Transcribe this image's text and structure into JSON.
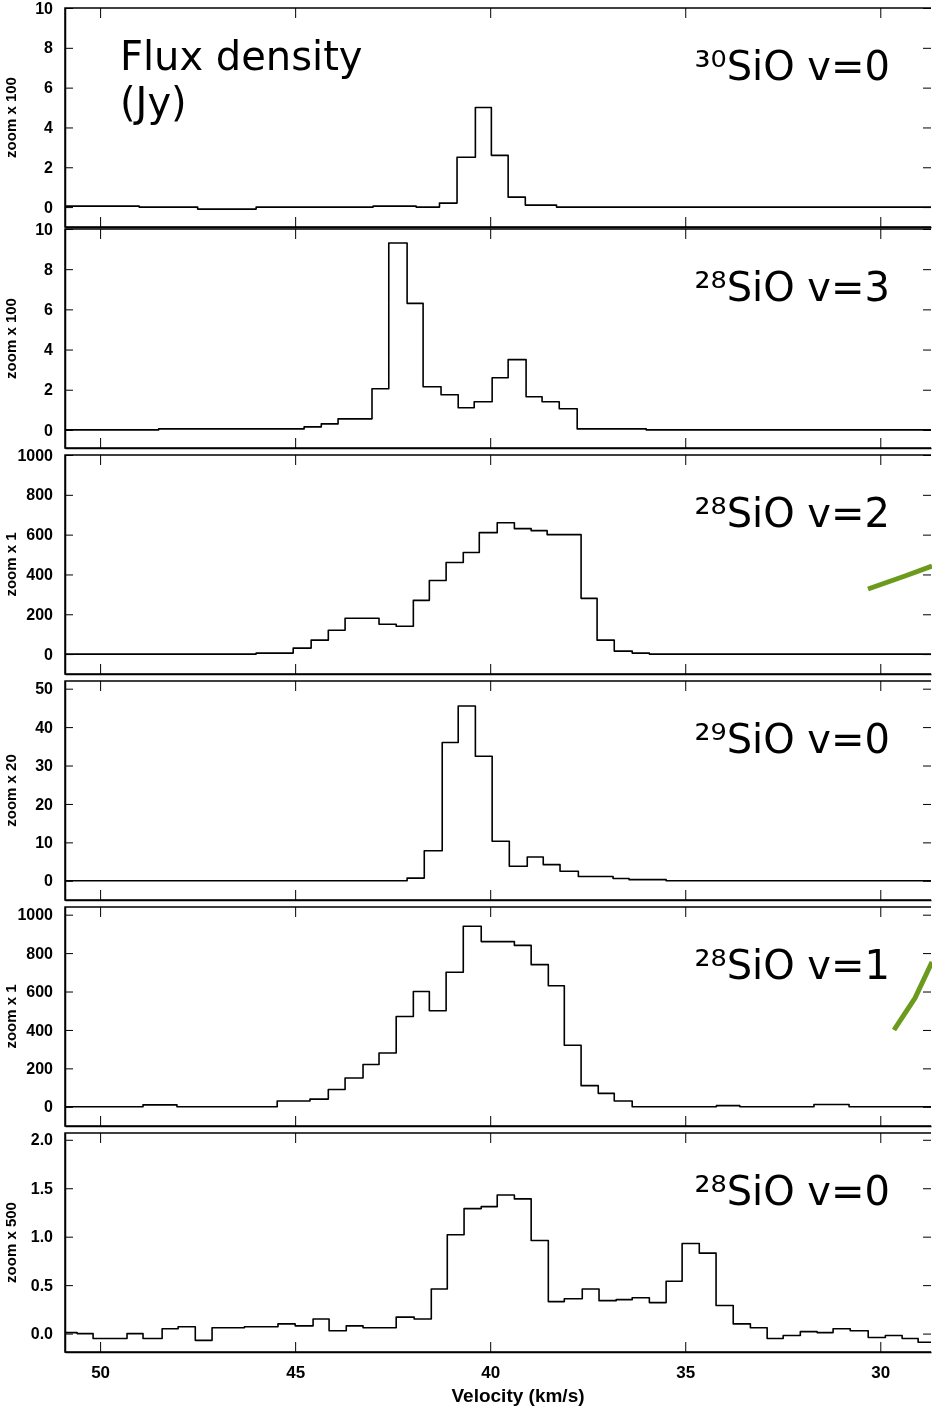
{
  "chart_data": [
    {
      "type": "step",
      "title": "³⁰SiO v=0",
      "ylabel": "zoom x 100",
      "annotations": [
        "Flux density (Jy)"
      ],
      "color": "#000000",
      "tick_labels": "y",
      "xlim": [
        50.9,
        28.7
      ],
      "xticks": [
        50,
        45,
        40,
        35,
        30
      ],
      "ylim": [
        -1,
        10
      ],
      "yticks": [
        0,
        2,
        4,
        6,
        8,
        10
      ],
      "x": [
        50.9,
        49,
        47.5,
        46,
        43,
        41.9,
        41.3,
        40.85,
        40.38,
        39.97,
        39.54,
        39.1,
        38.3,
        28.7
      ],
      "values": [
        0.05,
        0,
        -0.1,
        0,
        0.05,
        0,
        0.2,
        2.5,
        5.0,
        2.6,
        0.5,
        0.1,
        0,
        0
      ]
    },
    {
      "type": "step",
      "title": "²⁸SiO v=3",
      "ylabel": "zoom x 100",
      "color": "#000000",
      "tick_labels": "y",
      "xlim": [
        50.9,
        28.7
      ],
      "xticks": [
        50,
        45,
        40,
        35,
        30
      ],
      "ylim": [
        -0.9,
        10
      ],
      "yticks": [
        0,
        2,
        4,
        6,
        8,
        10
      ],
      "x": [
        50.9,
        48.5,
        44.77,
        44.33,
        43.9,
        43.03,
        42.6,
        42.13,
        41.72,
        41.26,
        40.82,
        40.41,
        39.95,
        39.54,
        39.08,
        38.67,
        38.23,
        37.77,
        36,
        28.7
      ],
      "values": [
        0,
        0.05,
        0.15,
        0.3,
        0.55,
        2.05,
        9.3,
        6.3,
        2.15,
        1.75,
        1.1,
        1.4,
        2.6,
        3.5,
        1.65,
        1.4,
        1.05,
        0.05,
        0,
        0
      ]
    },
    {
      "type": "step",
      "title": "²⁸SiO v=2",
      "ylabel": "zoom x 1",
      "color": "#000000",
      "tick_labels": "y",
      "xlim": [
        50.9,
        28.7
      ],
      "xticks": [
        50,
        45,
        40,
        35,
        30
      ],
      "ylim": [
        -100,
        1000
      ],
      "yticks": [
        0,
        200,
        400,
        600,
        800,
        1000
      ],
      "x": [
        50.9,
        46,
        45.05,
        44.59,
        44.15,
        43.72,
        43.26,
        42.85,
        42.41,
        41.97,
        41.56,
        41.13,
        40.69,
        40.28,
        39.82,
        39.38,
        38.95,
        38.54,
        38.1,
        37.67,
        37.26,
        36.82,
        36.36,
        35.92,
        28.7
      ],
      "values": [
        0,
        5,
        30,
        70,
        120,
        180,
        180,
        150,
        140,
        270,
        370,
        460,
        510,
        610,
        660,
        630,
        620,
        600,
        600,
        280,
        70,
        15,
        5,
        0,
        0
      ]
    },
    {
      "type": "step",
      "title": "²⁹SiO v=0",
      "ylabel": "zoom x 20",
      "color": "#000000",
      "tick_labels": "y",
      "xlim": [
        50.9,
        28.7
      ],
      "xticks": [
        50,
        45,
        40,
        35,
        30
      ],
      "ylim": [
        -5,
        52
      ],
      "yticks": [
        0,
        10,
        20,
        30,
        40,
        50
      ],
      "x": [
        50.9,
        42.13,
        41.69,
        41.23,
        40.82,
        40.38,
        39.95,
        39.51,
        39.05,
        38.64,
        38.21,
        37.74,
        36.85,
        36.44,
        35.49,
        28.7
      ],
      "values": [
        0,
        0.7,
        7.8,
        36,
        45.5,
        32.4,
        10.3,
        3.8,
        6.2,
        4.2,
        2.5,
        1.1,
        0.6,
        0.3,
        0,
        0
      ]
    },
    {
      "type": "step",
      "title": "²⁸SiO v=1",
      "ylabel": "zoom x 1",
      "color": "#000000",
      "tick_labels": "y",
      "xlim": [
        50.9,
        28.7
      ],
      "xticks": [
        50,
        45,
        40,
        35,
        30
      ],
      "ylim": [
        -100,
        1040
      ],
      "yticks": [
        0,
        200,
        400,
        600,
        800,
        1000
      ],
      "x": [
        50.9,
        48.9,
        48.03,
        45.46,
        44.62,
        44.15,
        43.72,
        43.26,
        42.85,
        42.41,
        41.97,
        41.56,
        41.13,
        40.69,
        40.23,
        39.82,
        39.38,
        38.95,
        38.51,
        38.1,
        37.67,
        37.23,
        36.82,
        36.36,
        34.2,
        33.6,
        31.7,
        30.8,
        28.7
      ],
      "values": [
        0,
        10,
        0,
        30,
        40,
        90,
        150,
        220,
        280,
        470,
        600,
        500,
        700,
        940,
        860,
        860,
        840,
        740,
        630,
        320,
        110,
        70,
        30,
        0,
        6,
        0,
        12,
        0,
        0
      ]
    },
    {
      "type": "step",
      "title": "²⁸SiO v=0",
      "ylabel": "zoom x 500",
      "xlabel": "Velocity (km/s)",
      "color": "#000000",
      "xlim": [
        50.9,
        28.7
      ],
      "xticks": [
        50,
        45,
        40,
        35,
        30
      ],
      "ylim": [
        -0.19,
        2.07
      ],
      "yticks": [
        {
          "value": 0,
          "label": "0.0"
        },
        {
          "value": 0.5,
          "label": "0.5"
        },
        {
          "value": 1,
          "label": "1.0"
        },
        {
          "value": 1.5,
          "label": "1.5"
        },
        {
          "value": 2,
          "label": "2.0"
        }
      ],
      "x": [
        50.9,
        50.59,
        50.18,
        49.31,
        48.9,
        48.41,
        48.0,
        47.56,
        47.13,
        46.3,
        45.44,
        45.0,
        44.54,
        44.13,
        43.69,
        43.26,
        42.41,
        41.95,
        41.51,
        41.1,
        40.67,
        40.23,
        39.82,
        39.38,
        38.95,
        38.51,
        38.1,
        37.64,
        37.21,
        36.77,
        36.36,
        35.92,
        35.49,
        35.08,
        34.64,
        34.21,
        33.77,
        33.33,
        32.9,
        32.49,
        32.05,
        31.62,
        31.21,
        30.77,
        30.31,
        29.87,
        29.44,
        29.03,
        28.7
      ],
      "values": [
        0.01,
        0,
        -0.05,
        0,
        -0.05,
        0.05,
        0.07,
        -0.07,
        0.06,
        0.07,
        0.1,
        0.08,
        0.15,
        0.03,
        0.08,
        0.06,
        0.17,
        0.15,
        0.46,
        1.02,
        1.29,
        1.31,
        1.43,
        1.39,
        0.96,
        0.33,
        0.36,
        0.46,
        0.34,
        0.35,
        0.37,
        0.32,
        0.54,
        0.93,
        0.83,
        0.29,
        0.1,
        0.06,
        -0.05,
        -0.02,
        0.02,
        0.01,
        0.05,
        0.03,
        -0.04,
        -0.02,
        -0.05,
        -0.09,
        -0.09
      ]
    }
  ]
}
